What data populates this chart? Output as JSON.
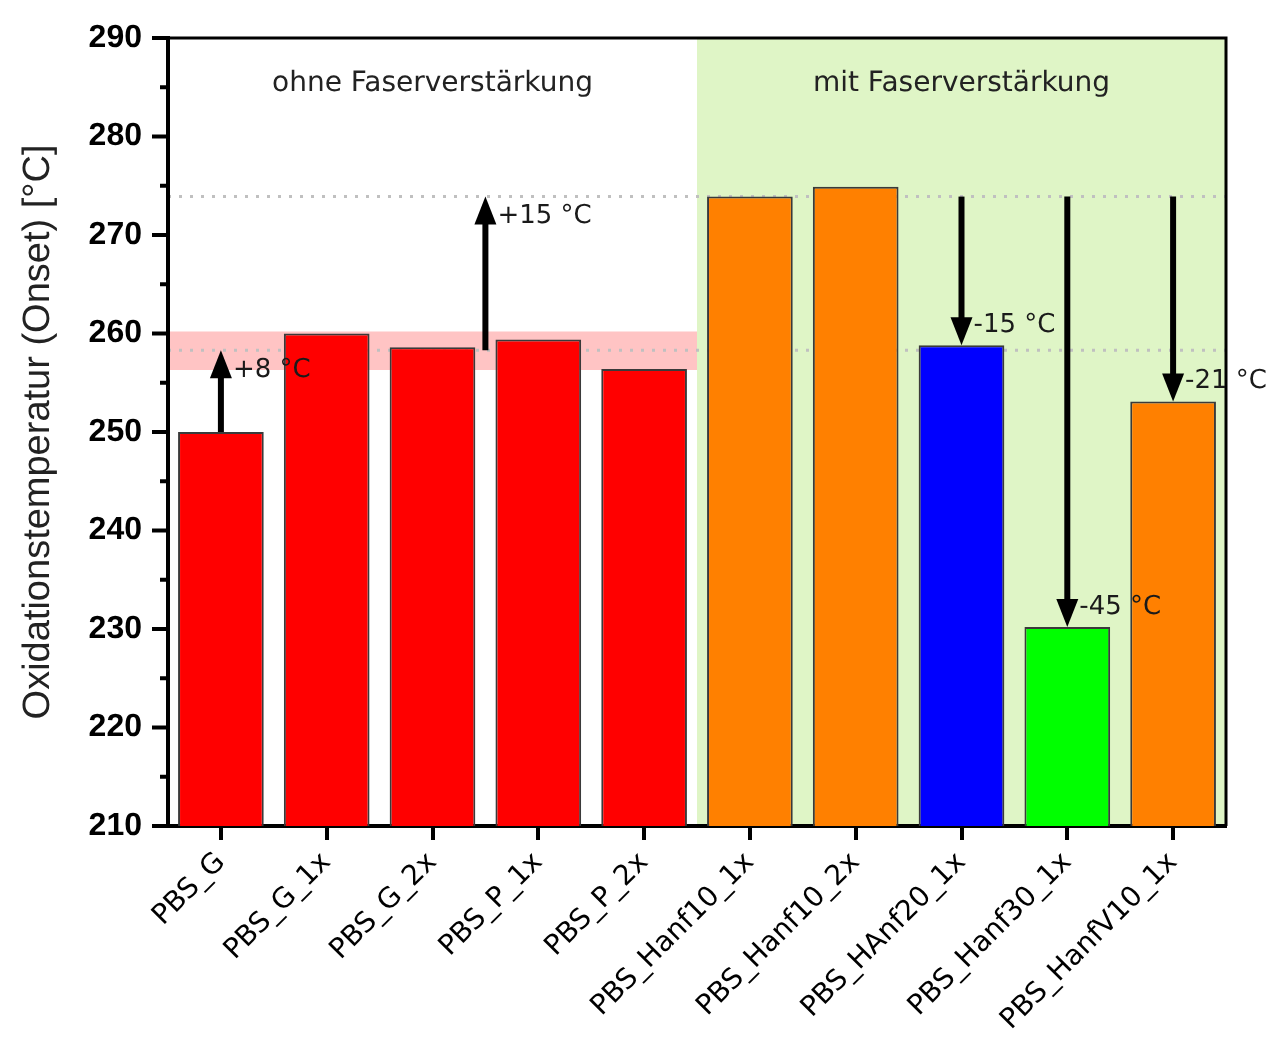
{
  "chart_data": {
    "type": "bar",
    "ylabel": "Oxidationstemperatur (Onset) [°C]",
    "categories": [
      "PBS_G",
      "PBS_G_1x",
      "PBS_G_2x",
      "PBS_P_1x",
      "PBS_P_2x",
      "PBS_Hanf10_1x",
      "PBS_Hanf10_2x",
      "PBS_HAnf20_1x",
      "PBS_Hanf30_1x",
      "PBS_HanfV10_1x"
    ],
    "values": [
      250,
      260,
      258.6,
      259.4,
      256.4,
      273.9,
      274.9,
      258.8,
      230.2,
      253.1
    ],
    "colors": [
      "#ff0000",
      "#ff0000",
      "#ff0000",
      "#ff0000",
      "#ff0000",
      "#ff8000",
      "#ff8000",
      "#0000ff",
      "#00ff00",
      "#ff8000"
    ],
    "ylim": [
      210,
      290
    ],
    "yticks": [
      210,
      {
        "value": 215,
        "label": null
      },
      220,
      {
        "value": 225,
        "label": null
      },
      230,
      {
        "value": 235,
        "label": null
      },
      240,
      {
        "value": 245,
        "label": null
      },
      250,
      {
        "value": 255,
        "label": null
      },
      260,
      {
        "value": 265,
        "label": null
      },
      270,
      {
        "value": 275,
        "label": null
      },
      280,
      {
        "value": 285,
        "label": null
      },
      290
    ],
    "bands": [
      {
        "axis": "y",
        "from": 256.3,
        "to": 260.2,
        "color": "#ffc4c4"
      },
      {
        "axis": "x",
        "from": "PBS_Hanf10_1x",
        "to": "PBS_HanfV10_1x",
        "label": "mit Faserverstärkung",
        "color": "#dff5c6"
      }
    ],
    "ref_lines": [
      {
        "axis": "y",
        "value": 258.3,
        "color": "#c0c0c0",
        "line_style": "dotted"
      },
      {
        "axis": "y",
        "value": 273.9,
        "color": "#c0c0c0",
        "line_style": "dotted"
      }
    ],
    "annotations": [
      "ohne Faserverstärkung",
      {
        "text": "+8 °C",
        "x": "PBS_G",
        "y": 258.3
      },
      {
        "text": "+15 °C",
        "y": 273.9
      },
      {
        "text": "-15 °C",
        "x": "PBS_HAnf20_1x",
        "y": 258.8
      },
      {
        "text": "-45 °C",
        "x": "PBS_Hanf30_1x",
        "y": 230.2
      },
      {
        "text": "-21 °C",
        "x": "PBS_HanfV10_1x",
        "y": 253.1
      }
    ]
  }
}
